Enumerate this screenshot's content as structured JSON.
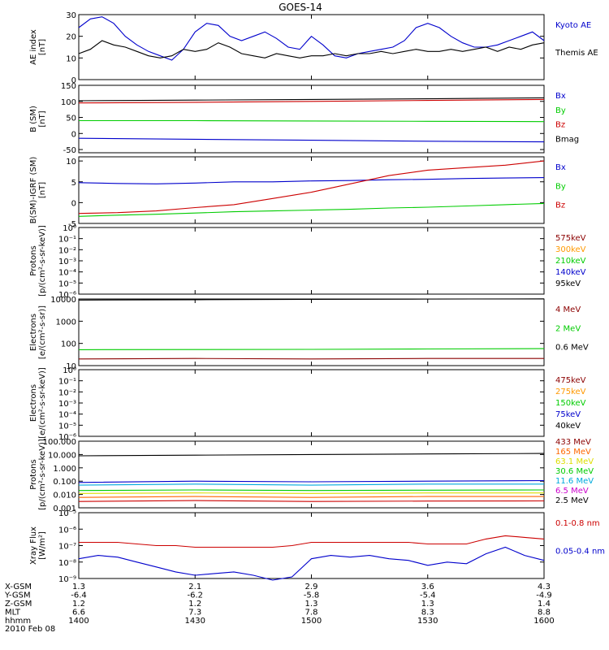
{
  "title": "GOES-14",
  "colors": {
    "black": "#000000",
    "blue": "#0000cc",
    "red": "#cc0000",
    "green": "#00cc00",
    "orange": "#ff9900",
    "cyan": "#00aadd",
    "yellow": "#dddd00",
    "magenta": "#cc00cc",
    "darkred": "#8b0000"
  },
  "x_axis_labels": {
    "rows": [
      {
        "label": "X-GSM",
        "values": [
          "1.3",
          "2.1",
          "2.9",
          "3.6",
          "4.3"
        ]
      },
      {
        "label": "Y-GSM",
        "values": [
          "-6.4",
          "-6.2",
          "-5.8",
          "-5.4",
          "-4.9"
        ]
      },
      {
        "label": "Z-GSM",
        "values": [
          "1.2",
          "1.2",
          "1.3",
          "1.3",
          "1.4"
        ]
      },
      {
        "label": "MLT",
        "values": [
          "6.6",
          "7.3",
          "7.8",
          "8.3",
          "8.8"
        ]
      },
      {
        "label": "hhmm",
        "values": [
          "1400",
          "1430",
          "1500",
          "1530",
          "1600"
        ]
      }
    ],
    "date": "2010 Feb 08"
  },
  "chart_data": [
    {
      "type": "line",
      "ylabel": "AE index\n[nT]",
      "ylim": [
        0,
        30
      ],
      "yticks": [
        "0",
        "10",
        "20",
        "30"
      ],
      "ytick_values": [
        0,
        10,
        20,
        30
      ],
      "scale": "linear",
      "legend": [
        {
          "name": "Kyoto AE",
          "color": "#0000cc"
        },
        {
          "name": "Themis AE",
          "color": "#000000"
        }
      ],
      "series": [
        {
          "name": "Kyoto AE",
          "color": "#0000cc",
          "x": [
            1400,
            1403,
            1406,
            1409,
            1412,
            1415,
            1418,
            1421,
            1424,
            1427,
            1430,
            1433,
            1436,
            1439,
            1442,
            1445,
            1448,
            1451,
            1454,
            1457,
            1500,
            1503,
            1506,
            1509,
            1512,
            1515,
            1518,
            1521,
            1524,
            1527,
            1530,
            1533,
            1536,
            1539,
            1542,
            1545,
            1548,
            1551,
            1554,
            1557,
            1600
          ],
          "values": [
            24,
            28,
            29,
            26,
            20,
            16,
            13,
            11,
            9,
            14,
            22,
            26,
            25,
            20,
            18,
            20,
            22,
            19,
            15,
            14,
            20,
            16,
            11,
            10,
            12,
            13,
            14,
            15,
            18,
            24,
            26,
            24,
            20,
            17,
            15,
            15,
            16,
            18,
            20,
            22,
            18
          ]
        },
        {
          "name": "Themis AE",
          "color": "#000000",
          "x": [
            1400,
            1403,
            1406,
            1409,
            1412,
            1415,
            1418,
            1421,
            1424,
            1427,
            1430,
            1433,
            1436,
            1439,
            1442,
            1445,
            1448,
            1451,
            1454,
            1457,
            1500,
            1503,
            1506,
            1509,
            1512,
            1515,
            1518,
            1521,
            1524,
            1527,
            1530,
            1533,
            1536,
            1539,
            1542,
            1545,
            1548,
            1551,
            1554,
            1557,
            1600
          ],
          "values": [
            12,
            14,
            18,
            16,
            15,
            13,
            11,
            10,
            11,
            14,
            13,
            14,
            17,
            15,
            12,
            11,
            10,
            12,
            11,
            10,
            11,
            11,
            12,
            11,
            12,
            12,
            13,
            12,
            13,
            14,
            13,
            13,
            14,
            13,
            14,
            15,
            13,
            15,
            14,
            16,
            17
          ]
        }
      ]
    },
    {
      "type": "line",
      "ylabel": "B (SM)\n[nT]",
      "ylim": [
        -60,
        150
      ],
      "yticks": [
        "-50",
        "0",
        "50",
        "100",
        "150"
      ],
      "ytick_values": [
        -50,
        0,
        50,
        100,
        150
      ],
      "scale": "linear",
      "legend": [
        {
          "name": "Bx",
          "color": "#0000cc"
        },
        {
          "name": "By",
          "color": "#00cc00"
        },
        {
          "name": "Bz",
          "color": "#cc0000"
        },
        {
          "name": "Bmag",
          "color": "#000000"
        }
      ],
      "series": [
        {
          "name": "Bx",
          "color": "#0000cc",
          "x": [
            1400,
            1430,
            1500,
            1530,
            1600
          ],
          "values": [
            -15,
            -18,
            -21,
            -24,
            -26
          ]
        },
        {
          "name": "By",
          "color": "#00cc00",
          "x": [
            1400,
            1430,
            1500,
            1530,
            1600
          ],
          "values": [
            40,
            40,
            39,
            38,
            37
          ]
        },
        {
          "name": "Bz",
          "color": "#cc0000",
          "x": [
            1400,
            1430,
            1500,
            1530,
            1600
          ],
          "values": [
            95,
            97,
            100,
            103,
            106
          ]
        },
        {
          "name": "Bmag",
          "color": "#000000",
          "x": [
            1400,
            1430,
            1500,
            1530,
            1600
          ],
          "values": [
            102,
            104,
            106,
            108,
            111
          ]
        }
      ]
    },
    {
      "type": "line",
      "ylabel": "B(SM)-IGRF (SM)\n[nT]",
      "ylim": [
        -5,
        11
      ],
      "yticks": [
        "-5",
        "0",
        "5",
        "10"
      ],
      "ytick_values": [
        -5,
        0,
        5,
        10
      ],
      "scale": "linear",
      "legend": [
        {
          "name": "Bx",
          "color": "#0000cc"
        },
        {
          "name": "By",
          "color": "#00cc00"
        },
        {
          "name": "Bz",
          "color": "#cc0000"
        }
      ],
      "series": [
        {
          "name": "Bx",
          "color": "#0000cc",
          "x": [
            1400,
            1410,
            1420,
            1430,
            1440,
            1450,
            1500,
            1510,
            1520,
            1530,
            1540,
            1550,
            1600
          ],
          "values": [
            4.8,
            4.6,
            4.5,
            4.7,
            5.0,
            5.0,
            5.2,
            5.3,
            5.5,
            5.6,
            5.8,
            5.9,
            6.0
          ]
        },
        {
          "name": "By",
          "color": "#00cc00",
          "x": [
            1400,
            1410,
            1420,
            1430,
            1440,
            1450,
            1500,
            1510,
            1520,
            1530,
            1540,
            1550,
            1600
          ],
          "values": [
            -3.3,
            -3.0,
            -2.8,
            -2.5,
            -2.2,
            -2.0,
            -1.8,
            -1.6,
            -1.3,
            -1.1,
            -0.8,
            -0.5,
            -0.2
          ]
        },
        {
          "name": "Bz",
          "color": "#cc0000",
          "x": [
            1400,
            1410,
            1420,
            1430,
            1440,
            1450,
            1500,
            1510,
            1520,
            1530,
            1540,
            1550,
            1600
          ],
          "values": [
            -2.6,
            -2.4,
            -2.0,
            -1.2,
            -0.5,
            1.0,
            2.5,
            4.5,
            6.5,
            7.8,
            8.4,
            9.0,
            10.0
          ]
        }
      ]
    },
    {
      "type": "line",
      "ylabel": "Protons\n[p/(cm²-s-sr-keV)]",
      "ylim_exp": [
        -6,
        0
      ],
      "yticks": [
        "10⁻⁶",
        "10⁻⁵",
        "10⁻⁴",
        "10⁻³",
        "10⁻²",
        "10⁻¹",
        "10⁰"
      ],
      "scale": "log",
      "legend": [
        {
          "name": "575keV",
          "color": "#8b0000"
        },
        {
          "name": "300keV",
          "color": "#ff9900"
        },
        {
          "name": "210keV",
          "color": "#00cc00"
        },
        {
          "name": "140keV",
          "color": "#0000cc"
        },
        {
          "name": "95keV",
          "color": "#000000"
        }
      ],
      "series": []
    },
    {
      "type": "line",
      "ylabel": "Electrons\n[e/(cm²-s-sr)]",
      "ylim": [
        10,
        10000
      ],
      "yticks": [
        "10",
        "100",
        "1000",
        "10000"
      ],
      "ytick_values": [
        10,
        100,
        1000,
        10000
      ],
      "scale": "log",
      "legend": [
        {
          "name": "4 MeV",
          "color": "#8b0000"
        },
        {
          "name": "2 MeV",
          "color": "#00cc00"
        },
        {
          "name": "0.6 MeV",
          "color": "#000000"
        }
      ],
      "series": [
        {
          "name": "0.6 MeV",
          "color": "#000000",
          "x": [
            1400,
            1430,
            1500,
            1530,
            1600
          ],
          "values": [
            9000,
            9300,
            9600,
            9900,
            10200
          ]
        },
        {
          "name": "2 MeV",
          "color": "#00cc00",
          "x": [
            1400,
            1430,
            1500,
            1530,
            1600
          ],
          "values": [
            52,
            53,
            54,
            56,
            58
          ]
        },
        {
          "name": "4 MeV",
          "color": "#8b0000",
          "x": [
            1400,
            1430,
            1500,
            1530,
            1600
          ],
          "values": [
            20,
            21,
            20,
            21,
            21
          ]
        }
      ]
    },
    {
      "type": "line",
      "ylabel": "Electrons\n[e/(cm²-s-sr-keV)]",
      "ylim_exp": [
        -6,
        0
      ],
      "yticks": [
        "10⁻⁶",
        "10⁻⁵",
        "10⁻⁴",
        "10⁻³",
        "10⁻²",
        "10⁻¹",
        "10⁰"
      ],
      "scale": "log",
      "legend": [
        {
          "name": "475keV",
          "color": "#8b0000"
        },
        {
          "name": "275keV",
          "color": "#ff9900"
        },
        {
          "name": "150keV",
          "color": "#00cc00"
        },
        {
          "name": "75keV",
          "color": "#0000cc"
        },
        {
          "name": "40keV",
          "color": "#000000"
        }
      ],
      "series": []
    },
    {
      "type": "line",
      "ylabel": "Protons\n[p/(cm²-s-sr-keV)]",
      "ylim": [
        0.001,
        100
      ],
      "yticks": [
        "0.001",
        "0.010",
        "0.100",
        "1.000",
        "10.000",
        "100.000"
      ],
      "ytick_values": [
        0.001,
        0.01,
        0.1,
        1,
        10,
        100
      ],
      "scale": "log",
      "legend": [
        {
          "name": "433 MeV",
          "color": "#8b0000"
        },
        {
          "name": "165 MeV",
          "color": "#ff6600"
        },
        {
          "name": "63.1 MeV",
          "color": "#dddd00"
        },
        {
          "name": "30.6 MeV",
          "color": "#00cc00"
        },
        {
          "name": "11.6 MeV",
          "color": "#00aadd"
        },
        {
          "name": "6.5 MeV",
          "color": "#cc00cc"
        },
        {
          "name": "2.5 MeV",
          "color": "#000000"
        }
      ],
      "series": [
        {
          "name": "2.5 MeV",
          "color": "#000000",
          "x": [
            1400,
            1430,
            1500,
            1530,
            1600
          ],
          "values": [
            8,
            9,
            10,
            11,
            12
          ]
        },
        {
          "name": "11.6 MeV",
          "color": "#0000cc",
          "x": [
            1400,
            1430,
            1500,
            1530,
            1600
          ],
          "values": [
            0.08,
            0.1,
            0.09,
            0.1,
            0.11
          ]
        },
        {
          "name": "11.6 MeV b",
          "color": "#00aadd",
          "x": [
            1400,
            1430,
            1500,
            1530,
            1600
          ],
          "values": [
            0.05,
            0.06,
            0.05,
            0.06,
            0.06
          ]
        },
        {
          "name": "30.6 MeV",
          "color": "#00cc00",
          "x": [
            1400,
            1430,
            1500,
            1530,
            1600
          ],
          "values": [
            0.02,
            0.022,
            0.02,
            0.021,
            0.022
          ]
        },
        {
          "name": "63.1 MeV",
          "color": "#dddd00",
          "x": [
            1400,
            1430,
            1500,
            1530,
            1600
          ],
          "values": [
            0.012,
            0.013,
            0.012,
            0.013,
            0.013
          ]
        },
        {
          "name": "165 MeV",
          "color": "#ff6600",
          "x": [
            1400,
            1430,
            1500,
            1530,
            1600
          ],
          "values": [
            0.006,
            0.007,
            0.006,
            0.007,
            0.007
          ]
        },
        {
          "name": "433 MeV",
          "color": "#cc0000",
          "x": [
            1400,
            1430,
            1500,
            1530,
            1600
          ],
          "values": [
            0.003,
            0.0035,
            0.003,
            0.0032,
            0.0033
          ]
        }
      ]
    },
    {
      "type": "line",
      "ylabel": "Xray Flux\n[W/m²]",
      "ylim_exp": [
        -9,
        -5
      ],
      "yticks": [
        "10⁻⁹",
        "10⁻⁸",
        "10⁻⁷",
        "10⁻⁶",
        "10⁻⁵"
      ],
      "scale": "log",
      "legend": [
        {
          "name": "0.1-0.8 nm",
          "color": "#cc0000"
        },
        {
          "name": "0.05-0.4 nm",
          "color": "#0000cc"
        }
      ],
      "series": [
        {
          "name": "0.1-0.8 nm",
          "color": "#cc0000",
          "x": [
            1400,
            1405,
            1410,
            1415,
            1420,
            1425,
            1430,
            1435,
            1440,
            1445,
            1450,
            1455,
            1500,
            1505,
            1510,
            1515,
            1520,
            1525,
            1530,
            1535,
            1540,
            1545,
            1550,
            1555,
            1600
          ],
          "values": [
            -6.8,
            -6.8,
            -6.8,
            -6.9,
            -7.0,
            -7.0,
            -7.1,
            -7.1,
            -7.1,
            -7.1,
            -7.1,
            -7.0,
            -6.8,
            -6.8,
            -6.8,
            -6.8,
            -6.8,
            -6.8,
            -6.9,
            -6.9,
            -6.9,
            -6.6,
            -6.4,
            -6.5,
            -6.6
          ]
        },
        {
          "name": "0.05-0.4 nm",
          "color": "#0000cc",
          "x": [
            1400,
            1405,
            1410,
            1415,
            1420,
            1425,
            1430,
            1435,
            1440,
            1445,
            1450,
            1455,
            1500,
            1505,
            1510,
            1515,
            1520,
            1525,
            1530,
            1535,
            1540,
            1545,
            1550,
            1555,
            1600
          ],
          "values": [
            -7.8,
            -7.6,
            -7.7,
            -8.0,
            -8.3,
            -8.6,
            -8.8,
            -8.7,
            -8.6,
            -8.8,
            -9.1,
            -8.9,
            -7.8,
            -7.6,
            -7.7,
            -7.6,
            -7.8,
            -7.9,
            -8.2,
            -8.0,
            -8.1,
            -7.5,
            -7.1,
            -7.6,
            -7.9
          ]
        }
      ]
    }
  ]
}
